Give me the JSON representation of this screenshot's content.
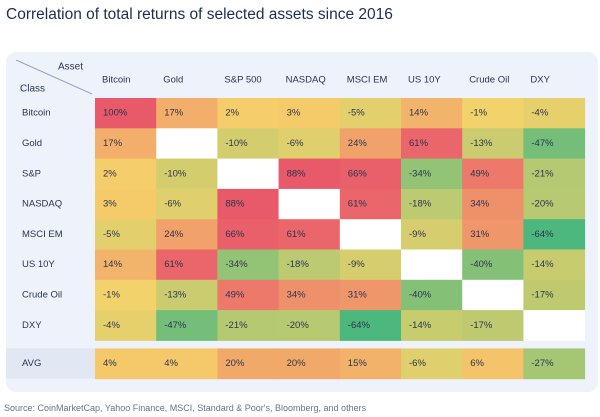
{
  "chart_data": {
    "type": "heatmap",
    "title": "Correlation of total returns of selected assets since 2016",
    "corner_label_top": "Asset",
    "corner_label_bottom": "Class",
    "columns": [
      "Bitcoin",
      "Gold",
      "S&P 500",
      "NASDAQ",
      "MSCI EM",
      "US 10Y",
      "Crude Oil",
      "DXY"
    ],
    "rows": [
      {
        "label": "Bitcoin",
        "values": [
          100,
          17,
          2,
          3,
          -5,
          14,
          -1,
          -4
        ]
      },
      {
        "label": "Gold",
        "values": [
          17,
          null,
          -10,
          -6,
          24,
          61,
          -13,
          -47
        ]
      },
      {
        "label": "S&P",
        "values": [
          2,
          -10,
          null,
          88,
          66,
          -34,
          49,
          -21
        ]
      },
      {
        "label": "NASDAQ",
        "values": [
          3,
          -6,
          88,
          null,
          61,
          -18,
          34,
          -20
        ]
      },
      {
        "label": "MSCI EM",
        "values": [
          -5,
          24,
          66,
          61,
          null,
          -9,
          31,
          -64
        ]
      },
      {
        "label": "US 10Y",
        "values": [
          14,
          61,
          -34,
          -18,
          -9,
          null,
          -40,
          -14
        ]
      },
      {
        "label": "Crude Oil",
        "values": [
          -1,
          -13,
          49,
          34,
          31,
          -40,
          null,
          -17
        ]
      },
      {
        "label": "DXY",
        "values": [
          -4,
          -47,
          -21,
          -20,
          -64,
          -14,
          -17,
          null
        ]
      }
    ],
    "average_row": {
      "label": "AVG",
      "values": [
        4,
        4,
        20,
        20,
        15,
        -6,
        6,
        -27
      ]
    },
    "value_unit": "%",
    "color_scale": {
      "negative": "#3fb67f",
      "neutral": "#f6d36a",
      "positive": "#e8596a",
      "self": "#ffffff"
    }
  },
  "source": "Source: CoinMarketCap, Yahoo Finance, MSCI, Standard & Poor's, Bloomberg, and others"
}
